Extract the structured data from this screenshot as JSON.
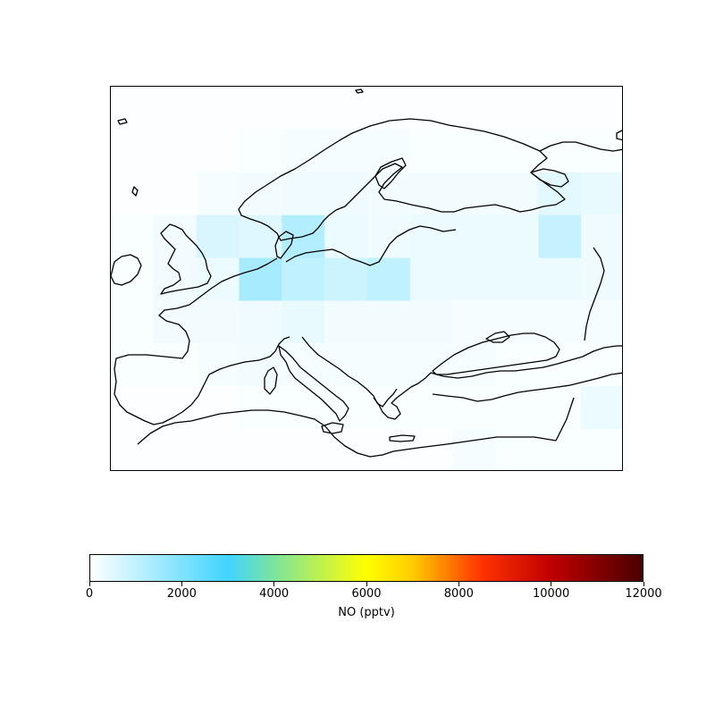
{
  "chart_data": {
    "type": "heatmap",
    "title": "",
    "variable_label": "NO (pptv)",
    "colorbar": {
      "min": 0,
      "max": 12000,
      "ticks": [
        0,
        2000,
        4000,
        6000,
        8000,
        10000,
        12000
      ],
      "tick_labels": [
        "0",
        "2000",
        "4000",
        "6000",
        "8000",
        "10000",
        "12000"
      ],
      "colormap_stops": [
        {
          "value": 0,
          "color": "#ffffff"
        },
        {
          "value": 3000,
          "color": "#40d4ff"
        },
        {
          "value": 4000,
          "color": "#7ce49c"
        },
        {
          "value": 6000,
          "color": "#ffff00"
        },
        {
          "value": 7000,
          "color": "#ffcc00"
        },
        {
          "value": 8500,
          "color": "#ff3300"
        },
        {
          "value": 10000,
          "color": "#c00000"
        },
        {
          "value": 12000,
          "color": "#4a0000"
        }
      ]
    },
    "grid": {
      "columns": 12,
      "rows": 9,
      "values": [
        [
          50,
          50,
          50,
          50,
          50,
          50,
          50,
          50,
          50,
          50,
          50,
          50
        ],
        [
          50,
          50,
          50,
          100,
          150,
          150,
          150,
          100,
          100,
          100,
          100,
          100
        ],
        [
          50,
          50,
          150,
          200,
          250,
          250,
          200,
          200,
          200,
          200,
          450,
          350
        ],
        [
          100,
          200,
          600,
          500,
          1200,
          300,
          250,
          300,
          300,
          300,
          900,
          250
        ],
        [
          100,
          200,
          300,
          1400,
          1000,
          800,
          1000,
          300,
          300,
          300,
          300,
          250
        ],
        [
          100,
          200,
          200,
          250,
          350,
          200,
          200,
          200,
          150,
          150,
          150,
          150
        ],
        [
          100,
          100,
          150,
          200,
          150,
          150,
          150,
          150,
          150,
          100,
          100,
          100
        ],
        [
          50,
          50,
          50,
          100,
          100,
          100,
          100,
          100,
          100,
          100,
          100,
          300
        ],
        [
          50,
          50,
          50,
          50,
          50,
          50,
          50,
          50,
          150,
          100,
          100,
          100
        ]
      ]
    },
    "map": {
      "region": "Europe",
      "coastlines": true
    }
  }
}
